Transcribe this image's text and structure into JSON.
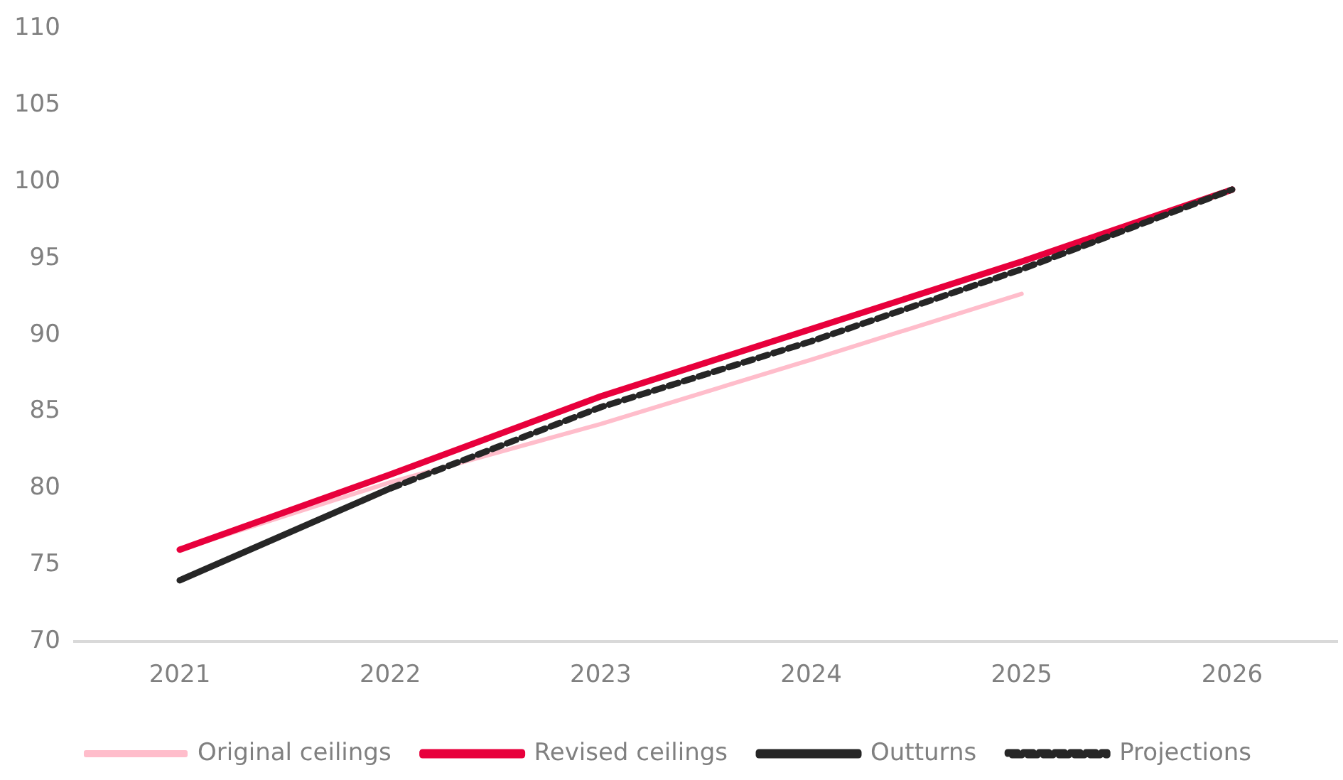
{
  "chart_data": {
    "type": "line",
    "categories": [
      "2021",
      "2022",
      "2023",
      "2024",
      "2025",
      "2026"
    ],
    "series": [
      {
        "name": "Original ceilings",
        "color": "#ffbdcb",
        "values": [
          76.0,
          80.4,
          84.2,
          88.4,
          92.7,
          null
        ]
      },
      {
        "name": "Revised ceilings",
        "color": "#e8003c",
        "values": [
          76.0,
          80.9,
          86.0,
          90.4,
          94.8,
          99.5
        ]
      },
      {
        "name": "Outturns",
        "color": "#262626",
        "values": [
          74.0,
          80.0,
          null,
          null,
          null,
          null
        ]
      },
      {
        "name": "Projections",
        "color": "#262626",
        "line_style": "dashed",
        "values": [
          null,
          80.0,
          85.3,
          89.6,
          94.3,
          99.5
        ]
      }
    ],
    "ylim": [
      70,
      110
    ],
    "yticks": [
      70,
      75,
      80,
      85,
      90,
      95,
      100,
      105,
      110
    ],
    "grid": false,
    "legend": "bottom",
    "marker": "none",
    "line_style": "solid"
  }
}
